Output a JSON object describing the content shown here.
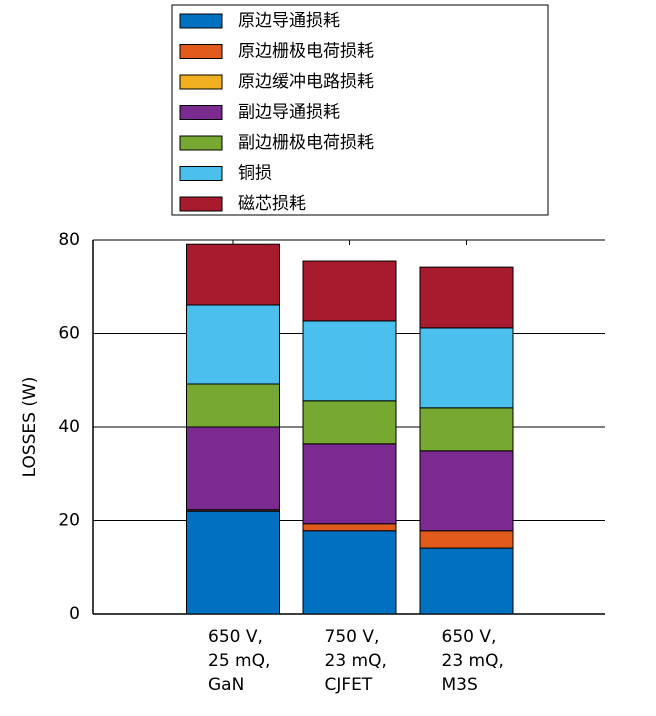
{
  "chart_data": {
    "type": "stacked_bar",
    "ylabel": "LOSSES (W)",
    "categories": [
      [
        "650 V,",
        "25 mQ,",
        "GaN"
      ],
      [
        "750 V,",
        "23 mQ,",
        "CJFET"
      ],
      [
        "650 V,",
        "23 mQ,",
        "M3S"
      ]
    ],
    "series": [
      {
        "name": "原边导通损耗",
        "color": "#0070c0",
        "values": [
          22,
          17.8,
          14.1
        ]
      },
      {
        "name": "原边栅极电荷损耗",
        "color": "#e05a1c",
        "values": [
          0.3,
          1.5,
          3.7
        ]
      },
      {
        "name": "原边缓冲电路损耗",
        "color": "#f0b020",
        "values": [
          0,
          0,
          0
        ]
      },
      {
        "name": "副边导通损耗",
        "color": "#7b2a8f",
        "values": [
          17.7,
          17.1,
          17.1
        ]
      },
      {
        "name": "副边栅极电荷损耗",
        "color": "#77a832",
        "values": [
          9.2,
          9.2,
          9.2
        ]
      },
      {
        "name": "铜损",
        "color": "#4cc0ec",
        "values": [
          16.9,
          17.1,
          17.1
        ]
      },
      {
        "name": "磁芯损耗",
        "color": "#a81a2e",
        "values": [
          13,
          12.8,
          13
        ]
      }
    ],
    "ylim": [
      0,
      80
    ],
    "yticks": [
      0,
      20,
      40,
      60,
      80
    ],
    "grid": true
  }
}
